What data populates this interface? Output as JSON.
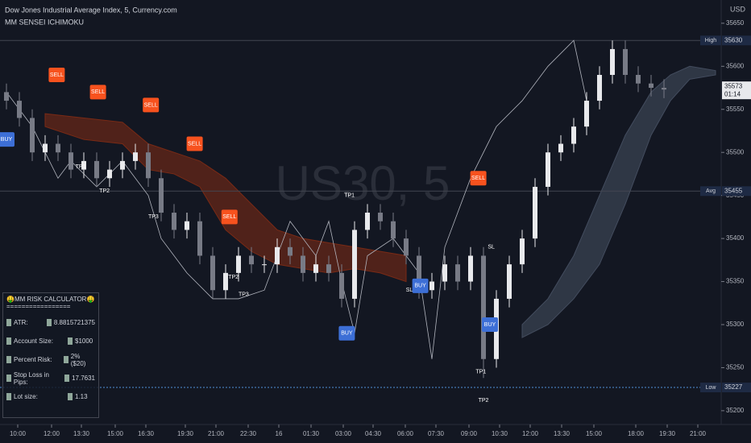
{
  "chart_data": {
    "type": "candlestick",
    "title": "Dow Jones Industrial Average Index, 5, Currency.com",
    "subtitle": "MM SENSEI ICHIMOKU",
    "watermark": "US30, 5",
    "currency": "USD",
    "up_color": "#e8e9ec",
    "down_color": "#787b86",
    "x": [
      0,
      1,
      2,
      3,
      4,
      5,
      6,
      7,
      8,
      9,
      10,
      11,
      12,
      13,
      14,
      15,
      16,
      17,
      18,
      19,
      20,
      21,
      22,
      23,
      24,
      25,
      26,
      27,
      28,
      29,
      30,
      31,
      32,
      33,
      34,
      35,
      36,
      37,
      38,
      39,
      40,
      41,
      42,
      43,
      44,
      45,
      46,
      47,
      48,
      49,
      50,
      51
    ],
    "open": [
      35570,
      35560,
      35540,
      35500,
      35510,
      35500,
      35480,
      35490,
      35470,
      35480,
      35490,
      35500,
      35470,
      35430,
      35410,
      35420,
      35380,
      35340,
      35360,
      35380,
      35370,
      35370,
      35390,
      35380,
      35360,
      35370,
      35360,
      35330,
      35410,
      35430,
      35420,
      35400,
      35380,
      35340,
      35350,
      35370,
      35350,
      35380,
      35260,
      35330,
      35370,
      35400,
      35460,
      35500,
      35510,
      35530,
      35560,
      35590,
      35620,
      35590,
      35580,
      35575
    ],
    "high": [
      35580,
      35570,
      35550,
      35520,
      35520,
      35510,
      35500,
      35500,
      35490,
      35500,
      35510,
      35510,
      35480,
      35440,
      35430,
      35430,
      35390,
      35370,
      35390,
      35390,
      35380,
      35400,
      35400,
      35390,
      35380,
      35380,
      35370,
      35420,
      35440,
      35440,
      35430,
      35410,
      35390,
      35360,
      35380,
      35380,
      35390,
      35390,
      35340,
      35380,
      35410,
      35470,
      35510,
      35520,
      35540,
      35570,
      35600,
      35630,
      35630,
      35600,
      35590,
      35585
    ],
    "low": [
      35550,
      35530,
      35490,
      35490,
      35490,
      35470,
      35470,
      35460,
      35460,
      35470,
      35480,
      35460,
      35420,
      35400,
      35400,
      35370,
      35330,
      35330,
      35350,
      35360,
      35360,
      35360,
      35370,
      35350,
      35350,
      35350,
      35320,
      35320,
      35400,
      35410,
      35390,
      35370,
      35330,
      35330,
      35340,
      35340,
      35340,
      35238,
      35250,
      35320,
      35360,
      35390,
      35450,
      35490,
      35500,
      35520,
      35550,
      35580,
      35580,
      35570,
      35565,
      35563
    ],
    "close": [
      35560,
      35540,
      35500,
      35510,
      35500,
      35480,
      35490,
      35470,
      35480,
      35490,
      35500,
      35470,
      35430,
      35410,
      35420,
      35380,
      35340,
      35360,
      35380,
      35370,
      35370,
      35390,
      35380,
      35360,
      35370,
      35360,
      35330,
      35410,
      35430,
      35420,
      35400,
      35380,
      35340,
      35350,
      35370,
      35350,
      35380,
      35260,
      35330,
      35370,
      35400,
      35460,
      35500,
      35510,
      35530,
      35560,
      35590,
      35620,
      35590,
      35580,
      35575,
      35573
    ],
    "clouds": [
      {
        "color": "#7a2a15",
        "x": [
          3,
          6,
          9,
          11,
          13,
          15,
          17,
          19,
          21,
          23,
          25,
          27,
          29,
          31
        ],
        "upper": [
          35545,
          35540,
          35535,
          35510,
          35500,
          35490,
          35470,
          35440,
          35410,
          35400,
          35395,
          35390,
          35385,
          35380
        ],
        "lower": [
          35530,
          35515,
          35510,
          35480,
          35475,
          35460,
          35410,
          35385,
          35370,
          35365,
          35360,
          35365,
          35360,
          35350
        ]
      },
      {
        "color": "#434c5e",
        "x": [
          40,
          42,
          44,
          46,
          48,
          50,
          51.5,
          53,
          55
        ],
        "upper": [
          35300,
          35330,
          35380,
          35450,
          35520,
          35570,
          35590,
          35600,
          35595
        ],
        "lower": [
          35285,
          35300,
          35330,
          35370,
          35440,
          35520,
          35560,
          35585,
          35590
        ]
      }
    ],
    "lagging_span": {
      "color": "#b2b5be",
      "x": [
        0,
        2,
        4,
        5,
        7,
        9,
        11,
        12,
        14,
        16,
        18,
        20,
        22,
        24,
        25,
        26,
        27,
        28,
        30,
        32,
        33,
        34,
        35,
        36,
        38,
        40,
        42,
        44,
        45
      ],
      "values": [
        35570,
        35530,
        35470,
        35490,
        35460,
        35490,
        35450,
        35400,
        35360,
        35330,
        35330,
        35340,
        35420,
        35380,
        35420,
        35350,
        35290,
        35380,
        35400,
        35360,
        35260,
        35390,
        35430,
        35470,
        35530,
        35560,
        35600,
        35630,
        35560
      ]
    },
    "annotations": [
      {
        "text": "SELL",
        "x": 3.9,
        "y": 35590
      },
      {
        "text": "SELL",
        "x": 7.1,
        "y": 35570
      },
      {
        "text": "SELL",
        "x": 11.2,
        "y": 35555
      },
      {
        "text": "SELL",
        "x": 14.6,
        "y": 35510
      },
      {
        "text": "SELL",
        "x": 17.3,
        "y": 35425
      },
      {
        "text": "SELL",
        "x": 36.6,
        "y": 35470
      },
      {
        "text": "BUY",
        "x": 0,
        "y": 35515
      },
      {
        "text": "BUY",
        "x": 26.4,
        "y": 35290
      },
      {
        "text": "BUY",
        "x": 32.1,
        "y": 35345
      },
      {
        "text": "BUY",
        "x": 37.5,
        "y": 35300
      },
      {
        "text": "TP1",
        "x": 5.75,
        "y": 35483
      },
      {
        "text": "TP2",
        "x": 7.6,
        "y": 35455
      },
      {
        "text": "TP3",
        "x": 11.4,
        "y": 35425
      },
      {
        "text": "TP2",
        "x": 17.6,
        "y": 35355
      },
      {
        "text": "TP3",
        "x": 18.4,
        "y": 35335
      },
      {
        "text": "TP1",
        "x": 26.6,
        "y": 35450
      },
      {
        "text": "SL",
        "x": 31.25,
        "y": 35340
      },
      {
        "text": "SL",
        "x": 37.6,
        "y": 35390
      },
      {
        "text": "TP1",
        "x": 36.8,
        "y": 35245
      },
      {
        "text": "TP2",
        "x": 37,
        "y": 35212
      }
    ],
    "levels": [
      {
        "label": "High",
        "value": 35630
      },
      {
        "label": "Avg",
        "value": 35455
      },
      {
        "label": "Low",
        "value": 35227
      }
    ],
    "last_price": 35573,
    "countdown": "01:14",
    "xlim": [
      -0.5,
      55.4375
    ],
    "ylim": [
      35184,
      35677
    ],
    "yticks": [
      35200,
      35250,
      35300,
      35350,
      35400,
      35450,
      35500,
      35550,
      35600,
      35650
    ],
    "xticks": [
      {
        "value": 0.875,
        "label": "10:00"
      },
      {
        "value": 3.5,
        "label": "12:00"
      },
      {
        "value": 5.8125,
        "label": "13:30"
      },
      {
        "value": 8.4375,
        "label": "15:00"
      },
      {
        "value": 10.8125,
        "label": "16:30"
      },
      {
        "value": 13.875,
        "label": "19:30"
      },
      {
        "value": 16.25,
        "label": "21:00"
      },
      {
        "value": 18.75,
        "label": "22:30"
      },
      {
        "value": 21.125,
        "label": "16"
      },
      {
        "value": 23.625,
        "label": "01:30"
      },
      {
        "value": 26.125,
        "label": "03:00"
      },
      {
        "value": 28.4375,
        "label": "04:30"
      },
      {
        "value": 30.9375,
        "label": "06:00"
      },
      {
        "value": 33.3125,
        "label": "07:30"
      },
      {
        "value": 35.875,
        "label": "09:00"
      },
      {
        "value": 38.25,
        "label": "10:30"
      },
      {
        "value": 40.625,
        "label": "12:00"
      },
      {
        "value": 43.0625,
        "label": "13:30"
      },
      {
        "value": 45.5625,
        "label": "15:00"
      },
      {
        "value": 48.8125,
        "label": "18:00"
      },
      {
        "value": 51.25,
        "label": "19:30"
      },
      {
        "value": 53.625,
        "label": "21:00"
      }
    ],
    "grid": false
  },
  "risk_calculator": {
    "title": "🤑MM RISK CALCULATOR🤑",
    "separator": "=================",
    "rows": [
      [
        "ATR:",
        "8.8815721375"
      ],
      [
        "Account Size:",
        "$1000"
      ],
      [
        "Percent Risk:",
        "2% ($20)"
      ],
      [
        "Stop Loss in Pips:",
        "17.7631"
      ],
      [
        "Lot size:",
        "1.13"
      ]
    ]
  }
}
